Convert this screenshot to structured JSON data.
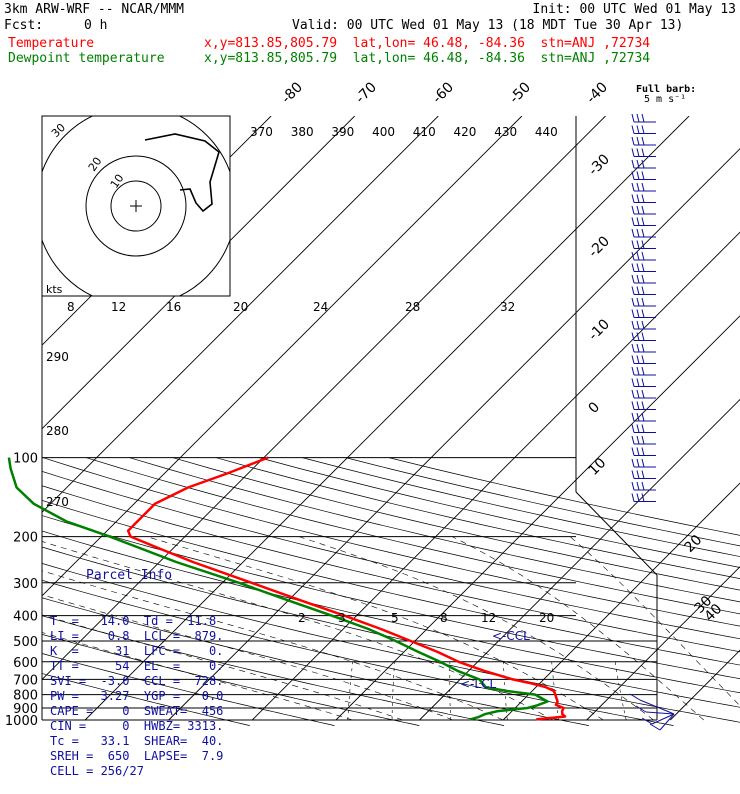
{
  "header": {
    "model": "3km ARW-WRF -- NCAR/MMM",
    "init": "Init: 00 UTC Wed 01 May 13",
    "fcst_label": "Fcst:",
    "fcst_value": "0 h",
    "valid": "Valid: 00 UTC Wed 01 May 13 (18 MDT Tue 30 Apr 13)",
    "temp_name": "Temperature",
    "dew_name": "Dewpoint temperature",
    "temp_loc": "x,y=813.85,805.79  lat,lon= 46.48, -84.36  stn=ANJ ,72734",
    "dew_loc": "x,y=813.85,805.79  lat,lon= 46.48, -84.36  stn=ANJ ,72734",
    "temp_color": "#ff0000",
    "dew_color": "#008000"
  },
  "full_barb": "Full barb:",
  "full_barb_unit": "5 m s⁻¹",
  "hodograph": {
    "kts": "kts",
    "rings": [
      "10",
      "20",
      "30"
    ]
  },
  "chart_data": {
    "type": "line",
    "y_axis": "pressure (hPa, log scale)",
    "pressure_ticks": [
      100,
      200,
      300,
      400,
      500,
      600,
      700,
      800,
      900,
      1000
    ],
    "isotherm_labels_top": [
      "-80",
      "-70",
      "-60",
      "-50",
      "-40"
    ],
    "isotherm_labels_side": [
      "-30",
      "-20",
      "-10",
      "0",
      "10",
      "20",
      "30",
      "40"
    ],
    "theta_labels": [
      "370",
      "380",
      "390",
      "400",
      "410",
      "420",
      "430",
      "440"
    ],
    "theta_labels_left": [
      "290",
      "280",
      "270"
    ],
    "mixing_ratio_labels_mid": [
      "8",
      "12",
      "16",
      "20",
      "24",
      "28",
      "32"
    ],
    "mixing_ratio_labels_low": [
      "2",
      "3",
      "5",
      "8",
      "12",
      "20"
    ],
    "series": [
      {
        "name": "Temperature",
        "color": "#ff0000",
        "points": [
          [
            995,
            13.9
          ],
          [
            970,
            17.0
          ],
          [
            950,
            16.4
          ],
          [
            925,
            16.0
          ],
          [
            900,
            15.8
          ],
          [
            875,
            14.5
          ],
          [
            850,
            14.3
          ],
          [
            800,
            13.2
          ],
          [
            775,
            12.6
          ],
          [
            750,
            11.2
          ],
          [
            725,
            9.0
          ],
          [
            700,
            6.3
          ],
          [
            650,
            1.9
          ],
          [
            600,
            -2.3
          ],
          [
            550,
            -6.0
          ],
          [
            500,
            -10.5
          ],
          [
            450,
            -15.5
          ],
          [
            400,
            -21.5
          ],
          [
            350,
            -28.5
          ],
          [
            300,
            -36.5
          ],
          [
            250,
            -46.0
          ],
          [
            225,
            -51.0
          ],
          [
            200,
            -56.5
          ],
          [
            190,
            -57.5
          ],
          [
            175,
            -57.5
          ],
          [
            150,
            -57.5
          ],
          [
            130,
            -55.5
          ],
          [
            115,
            -52.5
          ],
          [
            100,
            -49.5
          ]
        ]
      },
      {
        "name": "Dewpoint temperature",
        "color": "#008000",
        "points": [
          [
            995,
            6.0
          ],
          [
            975,
            6.7
          ],
          [
            950,
            7.1
          ],
          [
            925,
            8.3
          ],
          [
            900,
            11.5
          ],
          [
            880,
            12.3
          ],
          [
            850,
            13.1
          ],
          [
            800,
            10.8
          ],
          [
            775,
            7.0
          ],
          [
            750,
            4.0
          ],
          [
            700,
            2.3
          ],
          [
            650,
            -1.3
          ],
          [
            600,
            -4.5
          ],
          [
            550,
            -8.3
          ],
          [
            500,
            -12.3
          ],
          [
            450,
            -17.0
          ],
          [
            400,
            -23.0
          ],
          [
            350,
            -30.0
          ],
          [
            300,
            -38.0
          ],
          [
            250,
            -48.0
          ],
          [
            200,
            -59.0
          ],
          [
            175,
            -66.0
          ],
          [
            150,
            -72.0
          ],
          [
            130,
            -76.0
          ],
          [
            110,
            -79.0
          ],
          [
            100,
            -80.5
          ]
        ]
      }
    ],
    "ccl_label": "<-CCL",
    "lcl_label": "<-LCL"
  },
  "parcel_info": {
    "title": "Parcel Info",
    "rows": [
      "T  =   14.0  Td =  11.8",
      "LI =    0.8  LCL =  879.",
      "K  =     31  LFC =    0.",
      "TT =     54  EL  =    0.",
      "SVI =  -3.0  CCL =  728.",
      "PW =   3.27  YGP =   0.0",
      "CAPE =    0  SWEAT=  456",
      "CIN =     0  HWBZ= 3313.",
      "Tc =   33.1  SHEAR=  40.",
      "SREH =  650  LAPSE=  7.9",
      "CELL = 256/27"
    ]
  }
}
